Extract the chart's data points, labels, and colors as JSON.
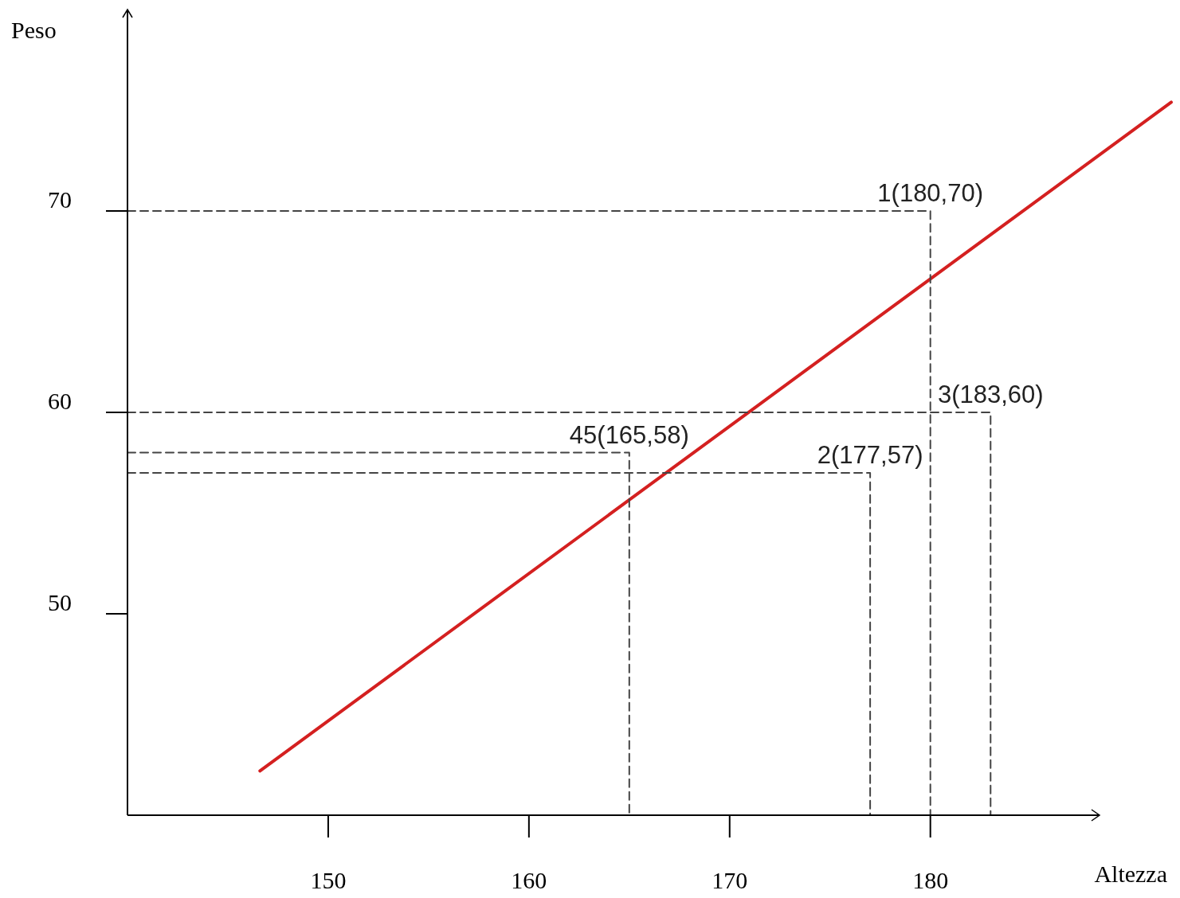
{
  "chart_data": {
    "type": "line",
    "xlabel": "Altezza",
    "ylabel": "Peso",
    "xlim": [
      140,
      192
    ],
    "ylim": [
      40,
      80
    ],
    "xticks": [
      150,
      160,
      170,
      180
    ],
    "yticks": [
      50,
      60,
      70
    ],
    "grid": false,
    "series": [
      {
        "color": "#d42020",
        "x": [
          146.6,
          192
        ],
        "values": [
          42.2,
          75.4
        ],
        "line_style": "solid"
      },
      {
        "color": "#444444",
        "x": [
          140,
          180,
          180
        ],
        "values": [
          70,
          70,
          40
        ],
        "line_style": "dashed"
      },
      {
        "color": "#444444",
        "x": [
          140,
          177,
          177
        ],
        "values": [
          57,
          57,
          40
        ],
        "line_style": "dashed"
      },
      {
        "color": "#444444",
        "x": [
          140,
          183,
          183
        ],
        "values": [
          60,
          60,
          40
        ],
        "line_style": "dashed"
      },
      {
        "color": "#444444",
        "x": [
          140,
          165,
          165
        ],
        "values": [
          58,
          58,
          40
        ],
        "line_style": "dashed"
      }
    ],
    "annotations": [
      {
        "text": "1(180,70)",
        "x": 180,
        "y": 70
      },
      {
        "text": "2(177,57)",
        "x": 177,
        "y": 57
      },
      {
        "text": "3(183,60)",
        "x": 183,
        "y": 60
      },
      {
        "text": "45(165,58)",
        "x": 165,
        "y": 58
      }
    ]
  }
}
